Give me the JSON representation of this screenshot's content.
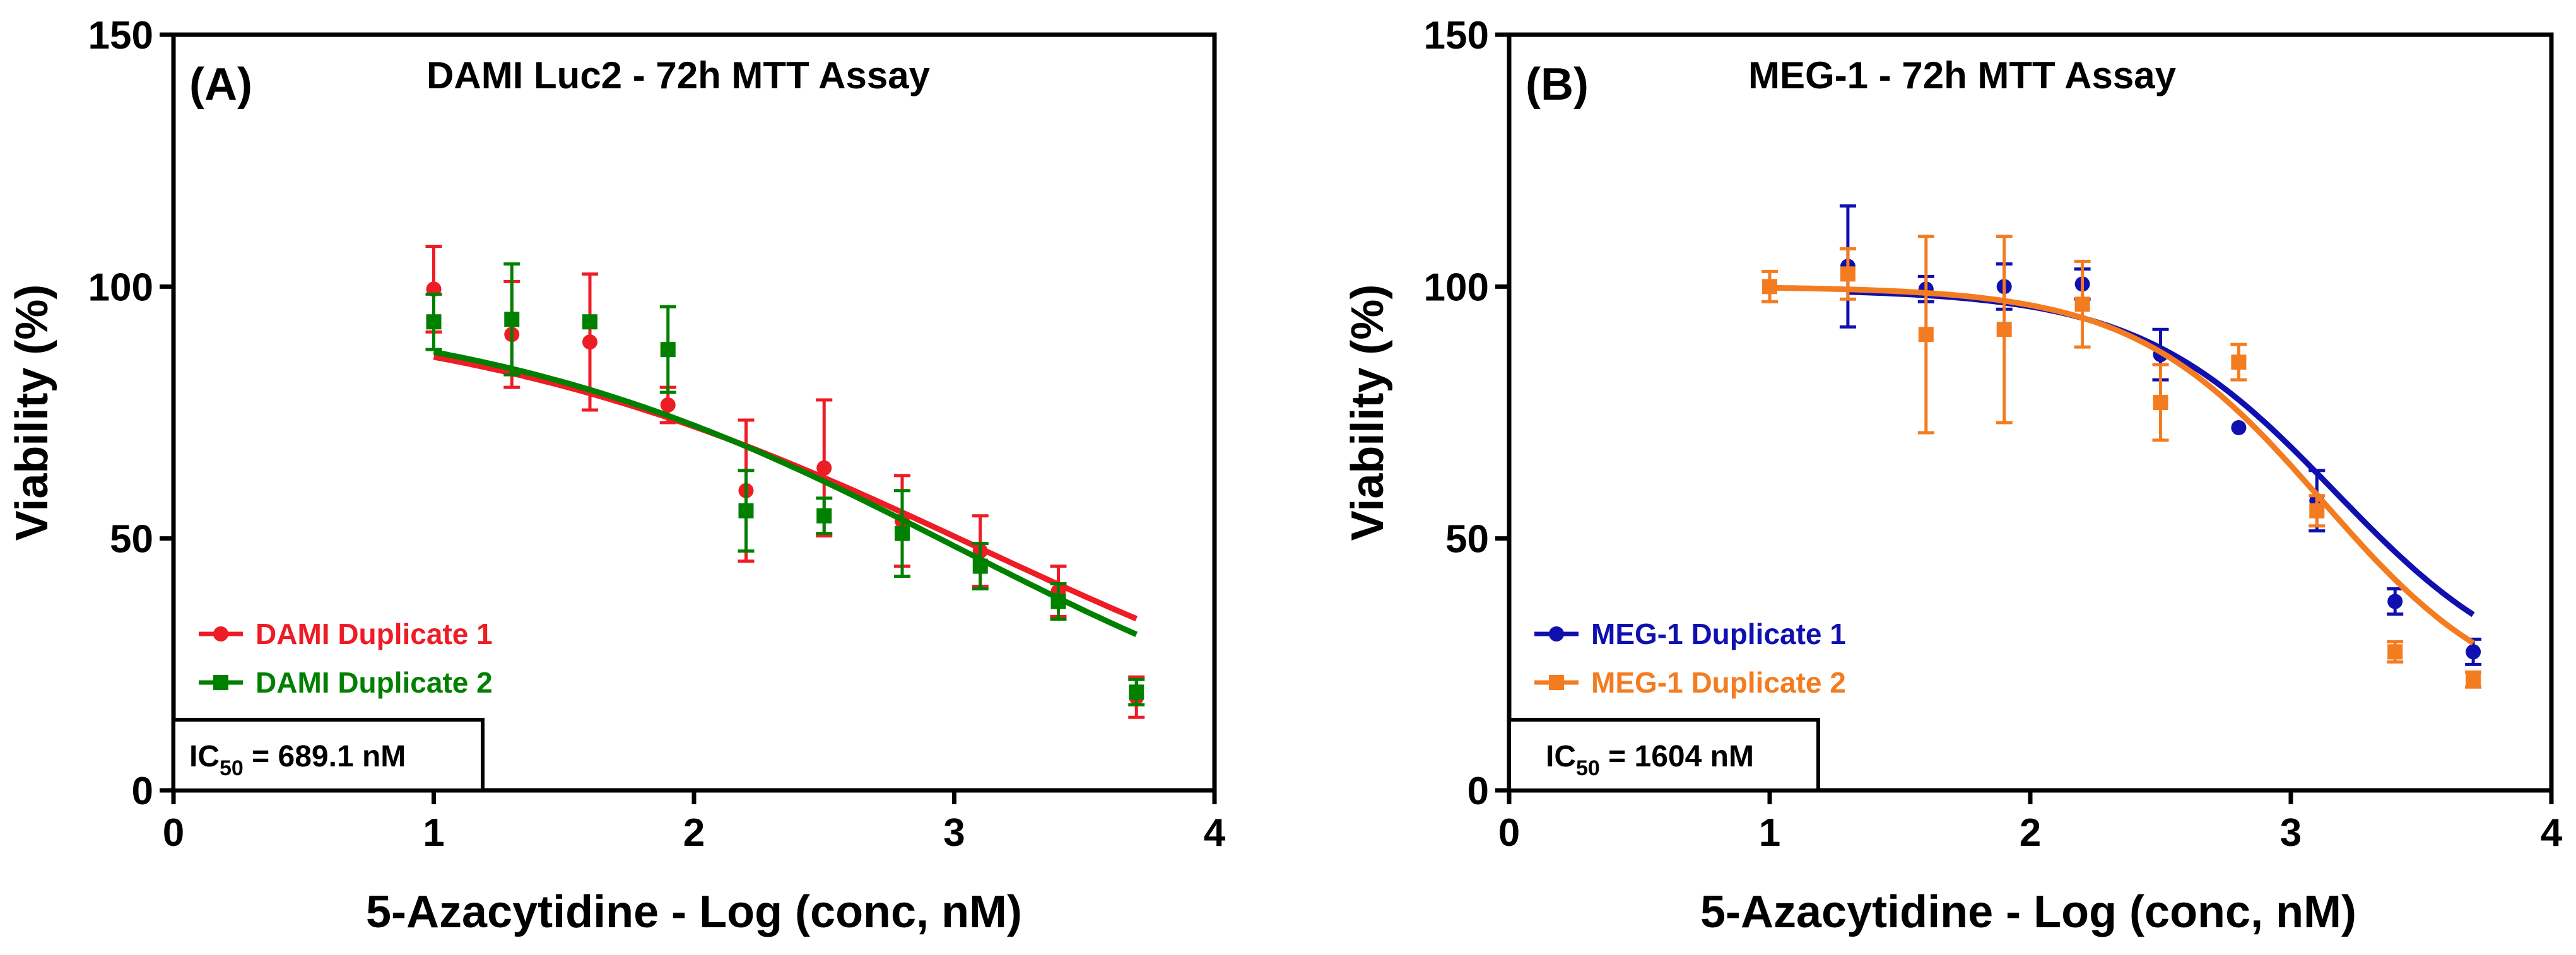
{
  "chart_data": [
    {
      "type": "scatter",
      "panel_label": "(A)",
      "title": "DAMI Luc2 - 72h MTT  Assay",
      "xlabel": "5-Azacytidine - Log (conc, nM)",
      "ylabel": "Viability (%)",
      "xlim": [
        0,
        4
      ],
      "ylim": [
        0,
        150
      ],
      "x_ticks": [
        "0",
        "1",
        "2",
        "3",
        "4"
      ],
      "y_ticks": [
        "0",
        "50",
        "100",
        "150"
      ],
      "grid": false,
      "legend_position": "bottom-left",
      "ic50": {
        "prefix": "IC",
        "subscript": "50",
        "value": " = 689.1 nM"
      },
      "series": [
        {
          "name": "DAMI Duplicate 1",
          "color": "#ee1c25",
          "marker": "circle",
          "x": [
            1.0,
            1.3,
            1.6,
            1.9,
            2.2,
            2.5,
            2.8,
            3.1,
            3.4,
            3.7
          ],
          "y": [
            99.5,
            90.5,
            89.0,
            76.5,
            59.5,
            64.0,
            53.5,
            47.5,
            39.5,
            18.5
          ],
          "err": [
            8.5,
            10.5,
            13.5,
            3.5,
            14.0,
            13.5,
            9.0,
            7.0,
            5.0,
            4.0
          ],
          "fit": {
            "top": 97,
            "bottom": 0,
            "logec50": 3.08,
            "hill": 0.43
          }
        },
        {
          "name": "DAMI Duplicate 2",
          "color": "#008000",
          "marker": "square",
          "x": [
            1.0,
            1.3,
            1.6,
            1.9,
            2.2,
            2.5,
            2.8,
            3.1,
            3.4,
            3.7
          ],
          "y": [
            93.0,
            93.5,
            93.0,
            87.5,
            55.5,
            54.5,
            51.0,
            44.5,
            37.5,
            19.5
          ],
          "err": [
            5.5,
            11.0,
            0,
            8.5,
            8.0,
            3.5,
            8.5,
            4.5,
            3.5,
            2.5
          ],
          "fit": {
            "top": 97,
            "bottom": 0,
            "logec50": 3.0,
            "hill": 0.47
          }
        }
      ]
    },
    {
      "type": "scatter",
      "panel_label": "(B)",
      "title": "MEG-1 - 72h MTT  Assay",
      "xlabel": "5-Azacytidine - Log (conc, nM)",
      "ylabel": "Viability (%)",
      "xlim": [
        0,
        4
      ],
      "ylim": [
        0,
        150
      ],
      "x_ticks": [
        "0",
        "1",
        "2",
        "3",
        "4"
      ],
      "y_ticks": [
        "0",
        "50",
        "100",
        "150"
      ],
      "grid": false,
      "legend_position": "bottom-left",
      "ic50": {
        "prefix": "IC",
        "subscript": "50",
        "value": " = 1604 nM"
      },
      "series": [
        {
          "name": "MEG-1 Duplicate 1",
          "color": "#1010b0",
          "marker": "circle",
          "x": [
            1.3,
            1.6,
            1.9,
            2.2,
            2.5,
            2.8,
            3.1,
            3.4,
            3.7
          ],
          "y": [
            104.0,
            99.5,
            100.0,
            100.5,
            86.5,
            72.0,
            57.5,
            37.5,
            27.5
          ],
          "err": [
            12.0,
            2.5,
            4.5,
            3.0,
            5.0,
            0,
            6.0,
            2.5,
            2.5
          ],
          "fit": {
            "top": 99.5,
            "bottom": 19,
            "logec50": 3.17,
            "hill": 1.15
          }
        },
        {
          "name": "MEG-1 Duplicate 2",
          "color": "#f47c20",
          "marker": "square",
          "x": [
            1.0,
            1.3,
            1.6,
            1.9,
            2.2,
            2.5,
            2.8,
            3.1,
            3.4,
            3.7
          ],
          "y": [
            100.0,
            102.5,
            90.5,
            91.5,
            96.5,
            77.0,
            85.0,
            55.5,
            27.5,
            22.0
          ],
          "err": [
            3.0,
            5.0,
            19.5,
            18.5,
            8.5,
            7.5,
            3.5,
            3.0,
            2.0,
            1.5
          ],
          "fit": {
            "top": 100,
            "bottom": 15,
            "logec50": 3.12,
            "hill": 1.2
          }
        }
      ]
    }
  ]
}
